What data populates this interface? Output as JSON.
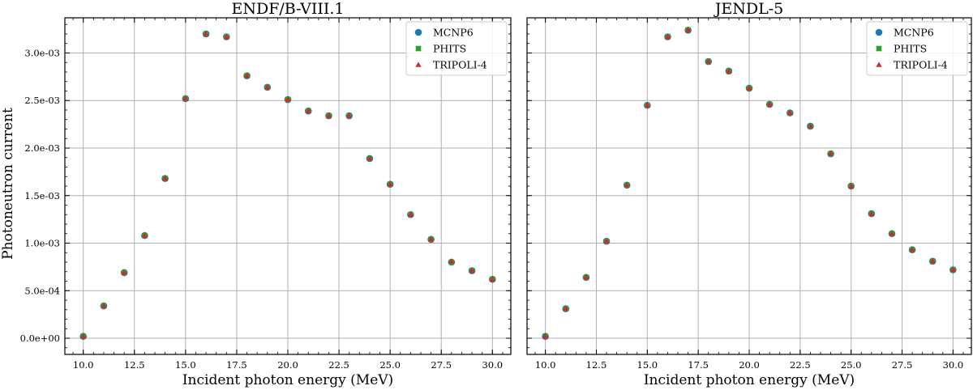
{
  "figure": {
    "ylabel": "Photoneutron current",
    "colors": {
      "MCNP6": "#1f77b4",
      "PHITS": "#2ca02c",
      "TRIPOLI-4": "#d62728",
      "grid": "#b0b0b0"
    }
  },
  "chart_data": [
    {
      "type": "scatter",
      "title": "ENDF/B-VIII.1",
      "xlabel": "Incident photon energy (MeV)",
      "ylabel": "Photoneutron current",
      "xlim": [
        9.1,
        30.9
      ],
      "ylim": [
        -0.00017,
        0.00337
      ],
      "grid": true,
      "legend_position": "top-right",
      "xticks": [
        10.0,
        12.5,
        15.0,
        17.5,
        20.0,
        22.5,
        25.0,
        27.5,
        30.0
      ],
      "xtick_labels": [
        "10.0",
        "12.5",
        "15.0",
        "17.5",
        "20.0",
        "22.5",
        "25.0",
        "27.5",
        "30.0"
      ],
      "yticks": [
        0,
        0.0005,
        0.001,
        0.0015,
        0.002,
        0.0025,
        0.003
      ],
      "ytick_labels": [
        "0.0e+00",
        "5.0e-04",
        "1.0e-03",
        "1.5e-03",
        "2.0e-03",
        "2.5e-03",
        "3.0e-03"
      ],
      "x": [
        10,
        11,
        12,
        13,
        14,
        15,
        16,
        17,
        18,
        19,
        20,
        21,
        22,
        23,
        24,
        25,
        26,
        27,
        28,
        29,
        30
      ],
      "series": [
        {
          "name": "MCNP6",
          "marker": "circle",
          "values": [
            2e-05,
            0.00034,
            0.00069,
            0.00108,
            0.00168,
            0.00252,
            0.0032,
            0.00317,
            0.00276,
            0.00264,
            0.00251,
            0.00239,
            0.00234,
            0.00234,
            0.00189,
            0.00162,
            0.0013,
            0.00104,
            0.0008,
            0.00071,
            0.00062
          ]
        },
        {
          "name": "PHITS",
          "marker": "square",
          "values": [
            2e-05,
            0.00034,
            0.00069,
            0.00108,
            0.00168,
            0.00252,
            0.0032,
            0.00317,
            0.00276,
            0.00264,
            0.00251,
            0.00239,
            0.00234,
            0.00234,
            0.00189,
            0.00162,
            0.0013,
            0.00104,
            0.0008,
            0.00071,
            0.00062
          ]
        },
        {
          "name": "TRIPOLI-4",
          "marker": "triangle",
          "values": [
            2e-05,
            0.00034,
            0.00069,
            0.00108,
            0.00168,
            0.00252,
            0.0032,
            0.00317,
            0.00276,
            0.00264,
            0.00251,
            0.00239,
            0.00234,
            0.00234,
            0.00189,
            0.00162,
            0.0013,
            0.00104,
            0.00081,
            0.00071,
            0.00062
          ]
        }
      ]
    },
    {
      "type": "scatter",
      "title": "JENDL-5",
      "xlabel": "Incident photon energy (MeV)",
      "ylabel": "",
      "xlim": [
        9.1,
        30.9
      ],
      "ylim": [
        -0.00017,
        0.00337
      ],
      "grid": true,
      "legend_position": "top-right",
      "xticks": [
        10.0,
        12.5,
        15.0,
        17.5,
        20.0,
        22.5,
        25.0,
        27.5,
        30.0
      ],
      "xtick_labels": [
        "10.0",
        "12.5",
        "15.0",
        "17.5",
        "20.0",
        "22.5",
        "25.0",
        "27.5",
        "30.0"
      ],
      "yticks": [
        0,
        0.0005,
        0.001,
        0.0015,
        0.002,
        0.0025,
        0.003
      ],
      "ytick_labels": [],
      "x": [
        10,
        11,
        12,
        13,
        14,
        15,
        16,
        17,
        18,
        19,
        20,
        21,
        22,
        23,
        24,
        25,
        26,
        27,
        28,
        29,
        30
      ],
      "series": [
        {
          "name": "MCNP6",
          "marker": "circle",
          "values": [
            2e-05,
            0.00031,
            0.00064,
            0.00102,
            0.00161,
            0.00245,
            0.00317,
            0.00324,
            0.00291,
            0.00281,
            0.00263,
            0.00246,
            0.00237,
            0.00223,
            0.00194,
            0.0016,
            0.00131,
            0.0011,
            0.00093,
            0.00081,
            0.00072
          ]
        },
        {
          "name": "PHITS",
          "marker": "square",
          "values": [
            2e-05,
            0.00031,
            0.00064,
            0.00102,
            0.00161,
            0.00245,
            0.00317,
            0.00324,
            0.00291,
            0.00281,
            0.00263,
            0.00246,
            0.00237,
            0.00223,
            0.00194,
            0.0016,
            0.00131,
            0.0011,
            0.00093,
            0.00081,
            0.00072
          ]
        },
        {
          "name": "TRIPOLI-4",
          "marker": "triangle",
          "values": [
            2e-05,
            0.00031,
            0.00064,
            0.00102,
            0.00161,
            0.00245,
            0.00317,
            0.00324,
            0.00291,
            0.00281,
            0.00263,
            0.00246,
            0.00237,
            0.00223,
            0.00194,
            0.0016,
            0.00131,
            0.0011,
            0.00093,
            0.00081,
            0.00072
          ]
        }
      ]
    }
  ]
}
